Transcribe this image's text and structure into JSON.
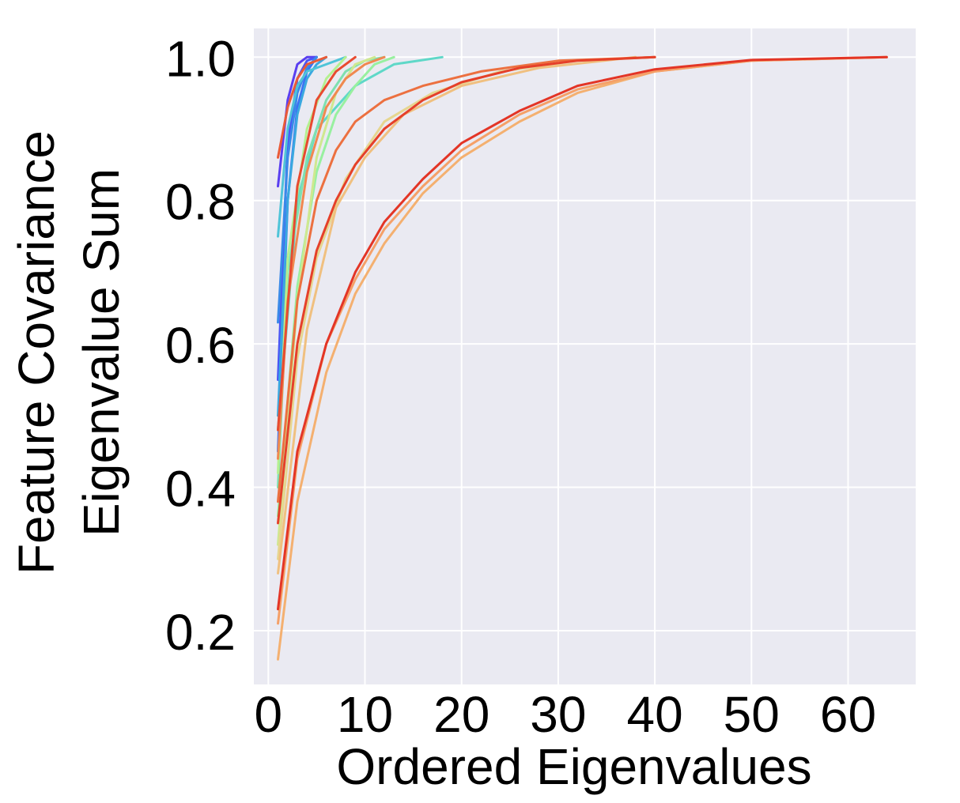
{
  "chart_data": {
    "type": "line",
    "xlabel": "Ordered Eigenvalues",
    "ylabel_lines": [
      "Feature Covariance",
      "Eigenvalue Sum"
    ],
    "xlim": [
      -1.5,
      67
    ],
    "ylim": [
      0.125,
      1.04
    ],
    "x_ticks": [
      0,
      10,
      20,
      30,
      40,
      50,
      60
    ],
    "y_ticks": [
      0.2,
      0.4,
      0.6,
      0.8,
      1.0
    ],
    "x_tick_labels": [
      "0",
      "10",
      "20",
      "30",
      "40",
      "50",
      "60"
    ],
    "y_tick_labels": [
      "0.2",
      "0.4",
      "0.6",
      "0.8",
      "1.0"
    ],
    "grid": true,
    "background": "#eaeaf2",
    "grid_color": "#ffffff",
    "series": [
      {
        "color": "#5a3ff0",
        "points": [
          [
            1,
            0.82
          ],
          [
            2,
            0.94
          ],
          [
            3,
            0.99
          ],
          [
            4,
            1.0
          ],
          [
            5,
            1.0
          ]
        ]
      },
      {
        "color": "#4a55f5",
        "points": [
          [
            1,
            0.55
          ],
          [
            2,
            0.88
          ],
          [
            3,
            0.97
          ],
          [
            4,
            0.995
          ],
          [
            5,
            1.0
          ]
        ]
      },
      {
        "color": "#3c6ff2",
        "points": [
          [
            1,
            0.45
          ],
          [
            2,
            0.8
          ],
          [
            3,
            0.93
          ],
          [
            4,
            0.98
          ],
          [
            5,
            1.0
          ]
        ]
      },
      {
        "color": "#3a8ae8",
        "points": [
          [
            1,
            0.63
          ],
          [
            2,
            0.86
          ],
          [
            3,
            0.95
          ],
          [
            4,
            0.985
          ],
          [
            5,
            1.0
          ]
        ]
      },
      {
        "color": "#3aa8e0",
        "points": [
          [
            1,
            0.5
          ],
          [
            2,
            0.8
          ],
          [
            3,
            0.92
          ],
          [
            4,
            0.97
          ],
          [
            5,
            0.99
          ],
          [
            6,
            1.0
          ]
        ]
      },
      {
        "color": "#4fc4d8",
        "points": [
          [
            1,
            0.75
          ],
          [
            2,
            0.9
          ],
          [
            3,
            0.96
          ],
          [
            4,
            0.98
          ],
          [
            6,
            0.99
          ],
          [
            8,
            1.0
          ]
        ]
      },
      {
        "color": "#5fd8c8",
        "points": [
          [
            1,
            0.48
          ],
          [
            3,
            0.8
          ],
          [
            5,
            0.9
          ],
          [
            7,
            0.93
          ],
          [
            9,
            0.96
          ],
          [
            13,
            0.99
          ],
          [
            18,
            1.0
          ]
        ]
      },
      {
        "color": "#7ee0b0",
        "points": [
          [
            1,
            0.4
          ],
          [
            2,
            0.7
          ],
          [
            4,
            0.86
          ],
          [
            6,
            0.94
          ],
          [
            8,
            0.98
          ],
          [
            10,
            0.995
          ],
          [
            12,
            1.0
          ]
        ]
      },
      {
        "color": "#98f0a0",
        "points": [
          [
            1,
            0.36
          ],
          [
            3,
            0.68
          ],
          [
            5,
            0.84
          ],
          [
            7,
            0.92
          ],
          [
            9,
            0.96
          ],
          [
            11,
            0.99
          ],
          [
            13,
            1.0
          ]
        ]
      },
      {
        "color": "#b4f090",
        "points": [
          [
            1,
            0.42
          ],
          [
            2,
            0.72
          ],
          [
            4,
            0.9
          ],
          [
            6,
            0.97
          ],
          [
            8,
            1.0
          ]
        ]
      },
      {
        "color": "#cfe890",
        "points": [
          [
            1,
            0.32
          ],
          [
            3,
            0.66
          ],
          [
            5,
            0.86
          ],
          [
            7,
            0.95
          ],
          [
            9,
            0.99
          ],
          [
            11,
            1.0
          ]
        ]
      },
      {
        "color": "#e6d690",
        "points": [
          [
            1,
            0.3
          ],
          [
            3,
            0.58
          ],
          [
            5,
            0.72
          ],
          [
            8,
            0.83
          ],
          [
            12,
            0.91
          ],
          [
            17,
            0.95
          ],
          [
            24,
            0.98
          ],
          [
            32,
            0.995
          ],
          [
            40,
            1.0
          ]
        ]
      },
      {
        "color": "#f0c080",
        "points": [
          [
            1,
            0.28
          ],
          [
            4,
            0.62
          ],
          [
            7,
            0.79
          ],
          [
            10,
            0.86
          ],
          [
            14,
            0.92
          ],
          [
            20,
            0.96
          ],
          [
            28,
            0.985
          ],
          [
            38,
            1.0
          ]
        ]
      },
      {
        "color": "#f4b070",
        "points": [
          [
            1,
            0.16
          ],
          [
            3,
            0.38
          ],
          [
            6,
            0.56
          ],
          [
            9,
            0.67
          ],
          [
            12,
            0.74
          ],
          [
            16,
            0.81
          ],
          [
            20,
            0.86
          ],
          [
            26,
            0.91
          ],
          [
            32,
            0.95
          ],
          [
            40,
            0.98
          ],
          [
            50,
            0.995
          ],
          [
            64,
            1.0
          ]
        ]
      },
      {
        "color": "#f5a068",
        "points": [
          [
            1,
            0.21
          ],
          [
            3,
            0.44
          ],
          [
            6,
            0.6
          ],
          [
            9,
            0.69
          ],
          [
            12,
            0.76
          ],
          [
            16,
            0.82
          ],
          [
            20,
            0.87
          ],
          [
            26,
            0.92
          ],
          [
            32,
            0.955
          ],
          [
            40,
            0.98
          ],
          [
            50,
            0.995
          ],
          [
            64,
            1.0
          ]
        ]
      },
      {
        "color": "#f08850",
        "points": [
          [
            1,
            0.44
          ],
          [
            2,
            0.66
          ],
          [
            4,
            0.84
          ],
          [
            6,
            0.93
          ],
          [
            8,
            0.97
          ],
          [
            10,
            0.99
          ],
          [
            12,
            1.0
          ]
        ]
      },
      {
        "color": "#ec7040",
        "points": [
          [
            1,
            0.38
          ],
          [
            3,
            0.66
          ],
          [
            5,
            0.8
          ],
          [
            7,
            0.87
          ],
          [
            9,
            0.91
          ],
          [
            12,
            0.94
          ],
          [
            16,
            0.96
          ],
          [
            22,
            0.98
          ],
          [
            30,
            0.995
          ],
          [
            40,
            1.0
          ]
        ]
      },
      {
        "color": "#e95a38",
        "points": [
          [
            1,
            0.86
          ],
          [
            2,
            0.93
          ],
          [
            3,
            0.97
          ],
          [
            4,
            0.99
          ],
          [
            6,
            1.0
          ]
        ]
      },
      {
        "color": "#e84a30",
        "points": [
          [
            1,
            0.48
          ],
          [
            3,
            0.82
          ],
          [
            5,
            0.94
          ],
          [
            7,
            0.98
          ],
          [
            9,
            1.0
          ]
        ]
      },
      {
        "color": "#e5402a",
        "points": [
          [
            1,
            0.35
          ],
          [
            3,
            0.6
          ],
          [
            5,
            0.73
          ],
          [
            7,
            0.8
          ],
          [
            9,
            0.85
          ],
          [
            12,
            0.9
          ],
          [
            16,
            0.94
          ],
          [
            20,
            0.965
          ],
          [
            26,
            0.985
          ],
          [
            32,
            0.995
          ],
          [
            40,
            1.0
          ]
        ]
      },
      {
        "color": "#e33526",
        "points": [
          [
            1,
            0.23
          ],
          [
            3,
            0.45
          ],
          [
            6,
            0.6
          ],
          [
            9,
            0.7
          ],
          [
            12,
            0.77
          ],
          [
            16,
            0.83
          ],
          [
            20,
            0.88
          ],
          [
            26,
            0.925
          ],
          [
            32,
            0.96
          ],
          [
            40,
            0.983
          ],
          [
            50,
            0.996
          ],
          [
            64,
            1.0
          ]
        ]
      }
    ]
  }
}
